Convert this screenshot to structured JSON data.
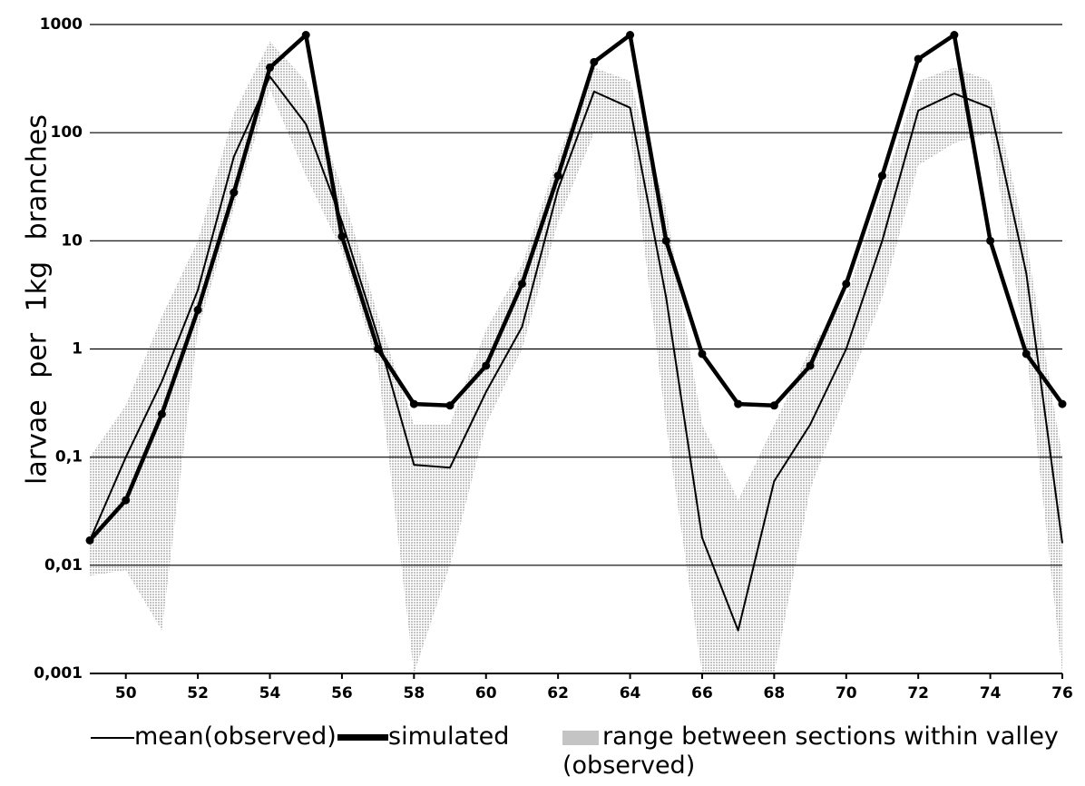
{
  "chart_data": {
    "type": "line",
    "ylabel": "larvae per 1kg branches",
    "yscale": "log",
    "x": [
      49,
      50,
      51,
      52,
      53,
      54,
      55,
      56,
      57,
      58,
      59,
      60,
      61,
      62,
      63,
      64,
      65,
      66,
      67,
      68,
      69,
      70,
      71,
      72,
      73,
      74,
      75,
      76
    ],
    "xlim": [
      49,
      76
    ],
    "xticks": [
      50,
      52,
      54,
      56,
      58,
      60,
      62,
      64,
      66,
      68,
      70,
      72,
      74,
      76
    ],
    "ylim": [
      0.001,
      1000
    ],
    "yticks": [
      {
        "value": 0.001,
        "label": "0,001"
      },
      {
        "value": 0.01,
        "label": "0,01"
      },
      {
        "value": 0.1,
        "label": "0,1"
      },
      1,
      10,
      100,
      1000
    ],
    "grid": true,
    "legend": "bottom",
    "series": [
      {
        "name": "mean(observed)",
        "color": "#000000",
        "width": 2,
        "values": [
          0.017,
          0.1,
          0.5,
          3.5,
          60,
          330,
          120,
          15,
          1.3,
          0.085,
          0.08,
          0.4,
          1.6,
          30,
          240,
          170,
          3,
          0.018,
          0.0025,
          0.06,
          0.2,
          1,
          10,
          160,
          230,
          170,
          5,
          0.016
        ]
      },
      {
        "name": "simulated",
        "color": "#000000",
        "width": 4.5,
        "markers": true,
        "values": [
          0.017,
          0.04,
          0.25,
          2.3,
          28,
          400,
          800,
          11,
          1.0,
          0.31,
          0.3,
          0.7,
          4,
          40,
          450,
          800,
          10,
          0.9,
          0.31,
          0.3,
          0.7,
          4,
          40,
          480,
          800,
          10,
          0.9,
          0.31
        ]
      }
    ],
    "range": {
      "name": "range between sections within valley (observed)",
      "color": "#c4c4c4",
      "lower": [
        0.008,
        0.009,
        0.0025,
        1.5,
        20,
        250,
        40,
        8,
        0.7,
        0.001,
        0.01,
        0.2,
        1,
        15,
        100,
        100,
        0.2,
        0.001,
        0.001,
        0.001,
        0.05,
        0.4,
        3,
        50,
        80,
        100,
        1,
        0.001
      ],
      "upper": [
        0.1,
        0.3,
        2,
        10,
        150,
        700,
        300,
        30,
        2,
        0.2,
        0.2,
        1.5,
        6,
        60,
        400,
        300,
        20,
        0.2,
        0.04,
        0.2,
        1,
        3,
        30,
        300,
        400,
        300,
        10,
        0.1
      ]
    }
  }
}
